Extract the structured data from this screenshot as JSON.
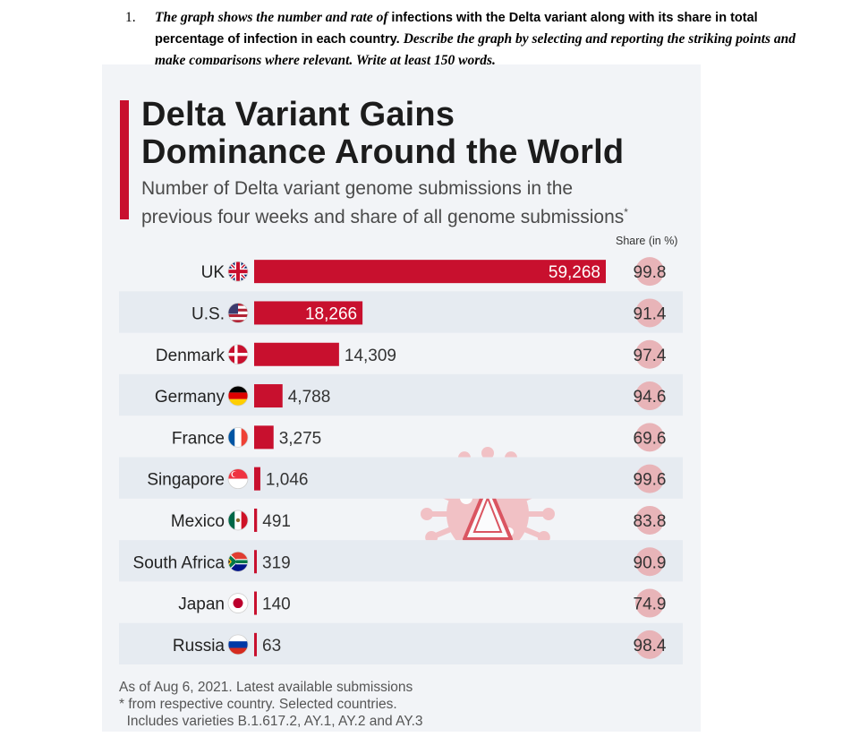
{
  "question": {
    "number": "1.",
    "part1": "The graph  shows the number and rate of",
    "part2": "infections with the Delta variant along with its share in total percentage of infection in each country",
    "part3": ". ",
    "part4": "Describe the graph by selecting and reporting the striking points and make comparisons where relevant. Write at least 150 words."
  },
  "chart_data": {
    "type": "bar",
    "title_line1": "Delta Variant Gains",
    "title_line2": "Dominance Around the World",
    "subtitle_line1": "Number of Delta variant genome submissions in the",
    "subtitle_line2": "previous four weeks and share of all genome submissions",
    "subtitle_mark": "*",
    "share_header": "Share (in %)",
    "categories": [
      "UK",
      "U.S.",
      "Denmark",
      "Germany",
      "France",
      "Singapore",
      "Mexico",
      "South Africa",
      "Japan",
      "Russia"
    ],
    "values": [
      59268,
      18266,
      14309,
      4788,
      3275,
      1046,
      491,
      319,
      140,
      63
    ],
    "value_labels": [
      "59,268",
      "18,266",
      "14,309",
      "4,788",
      "3,275",
      "1,046",
      "491",
      "319",
      "140",
      "63"
    ],
    "share": [
      99.8,
      91.4,
      97.4,
      94.6,
      69.6,
      99.6,
      83.8,
      90.9,
      74.9,
      98.4
    ],
    "share_labels": [
      "99.8",
      "91.4",
      "97.4",
      "94.6",
      "69.6",
      "99.6",
      "83.8",
      "90.9",
      "74.9",
      "98.4"
    ],
    "flags": [
      "uk-flag-icon",
      "us-flag-icon",
      "denmark-flag-icon",
      "germany-flag-icon",
      "france-flag-icon",
      "singapore-flag-icon",
      "mexico-flag-icon",
      "south-africa-flag-icon",
      "japan-flag-icon",
      "russia-flag-icon"
    ],
    "xlim": [
      0,
      59268
    ],
    "bar_color": "#c8102e",
    "share_bubble_color": "#e8b4b8",
    "watermark_icon": "delta-virus-icon"
  },
  "footer": {
    "line1": "As of Aug 6, 2021. Latest available submissions",
    "line2": "* from respective country. Selected countries.",
    "line3": "  Includes varieties B.1.617.2, AY.1, AY.2 and AY.3"
  }
}
